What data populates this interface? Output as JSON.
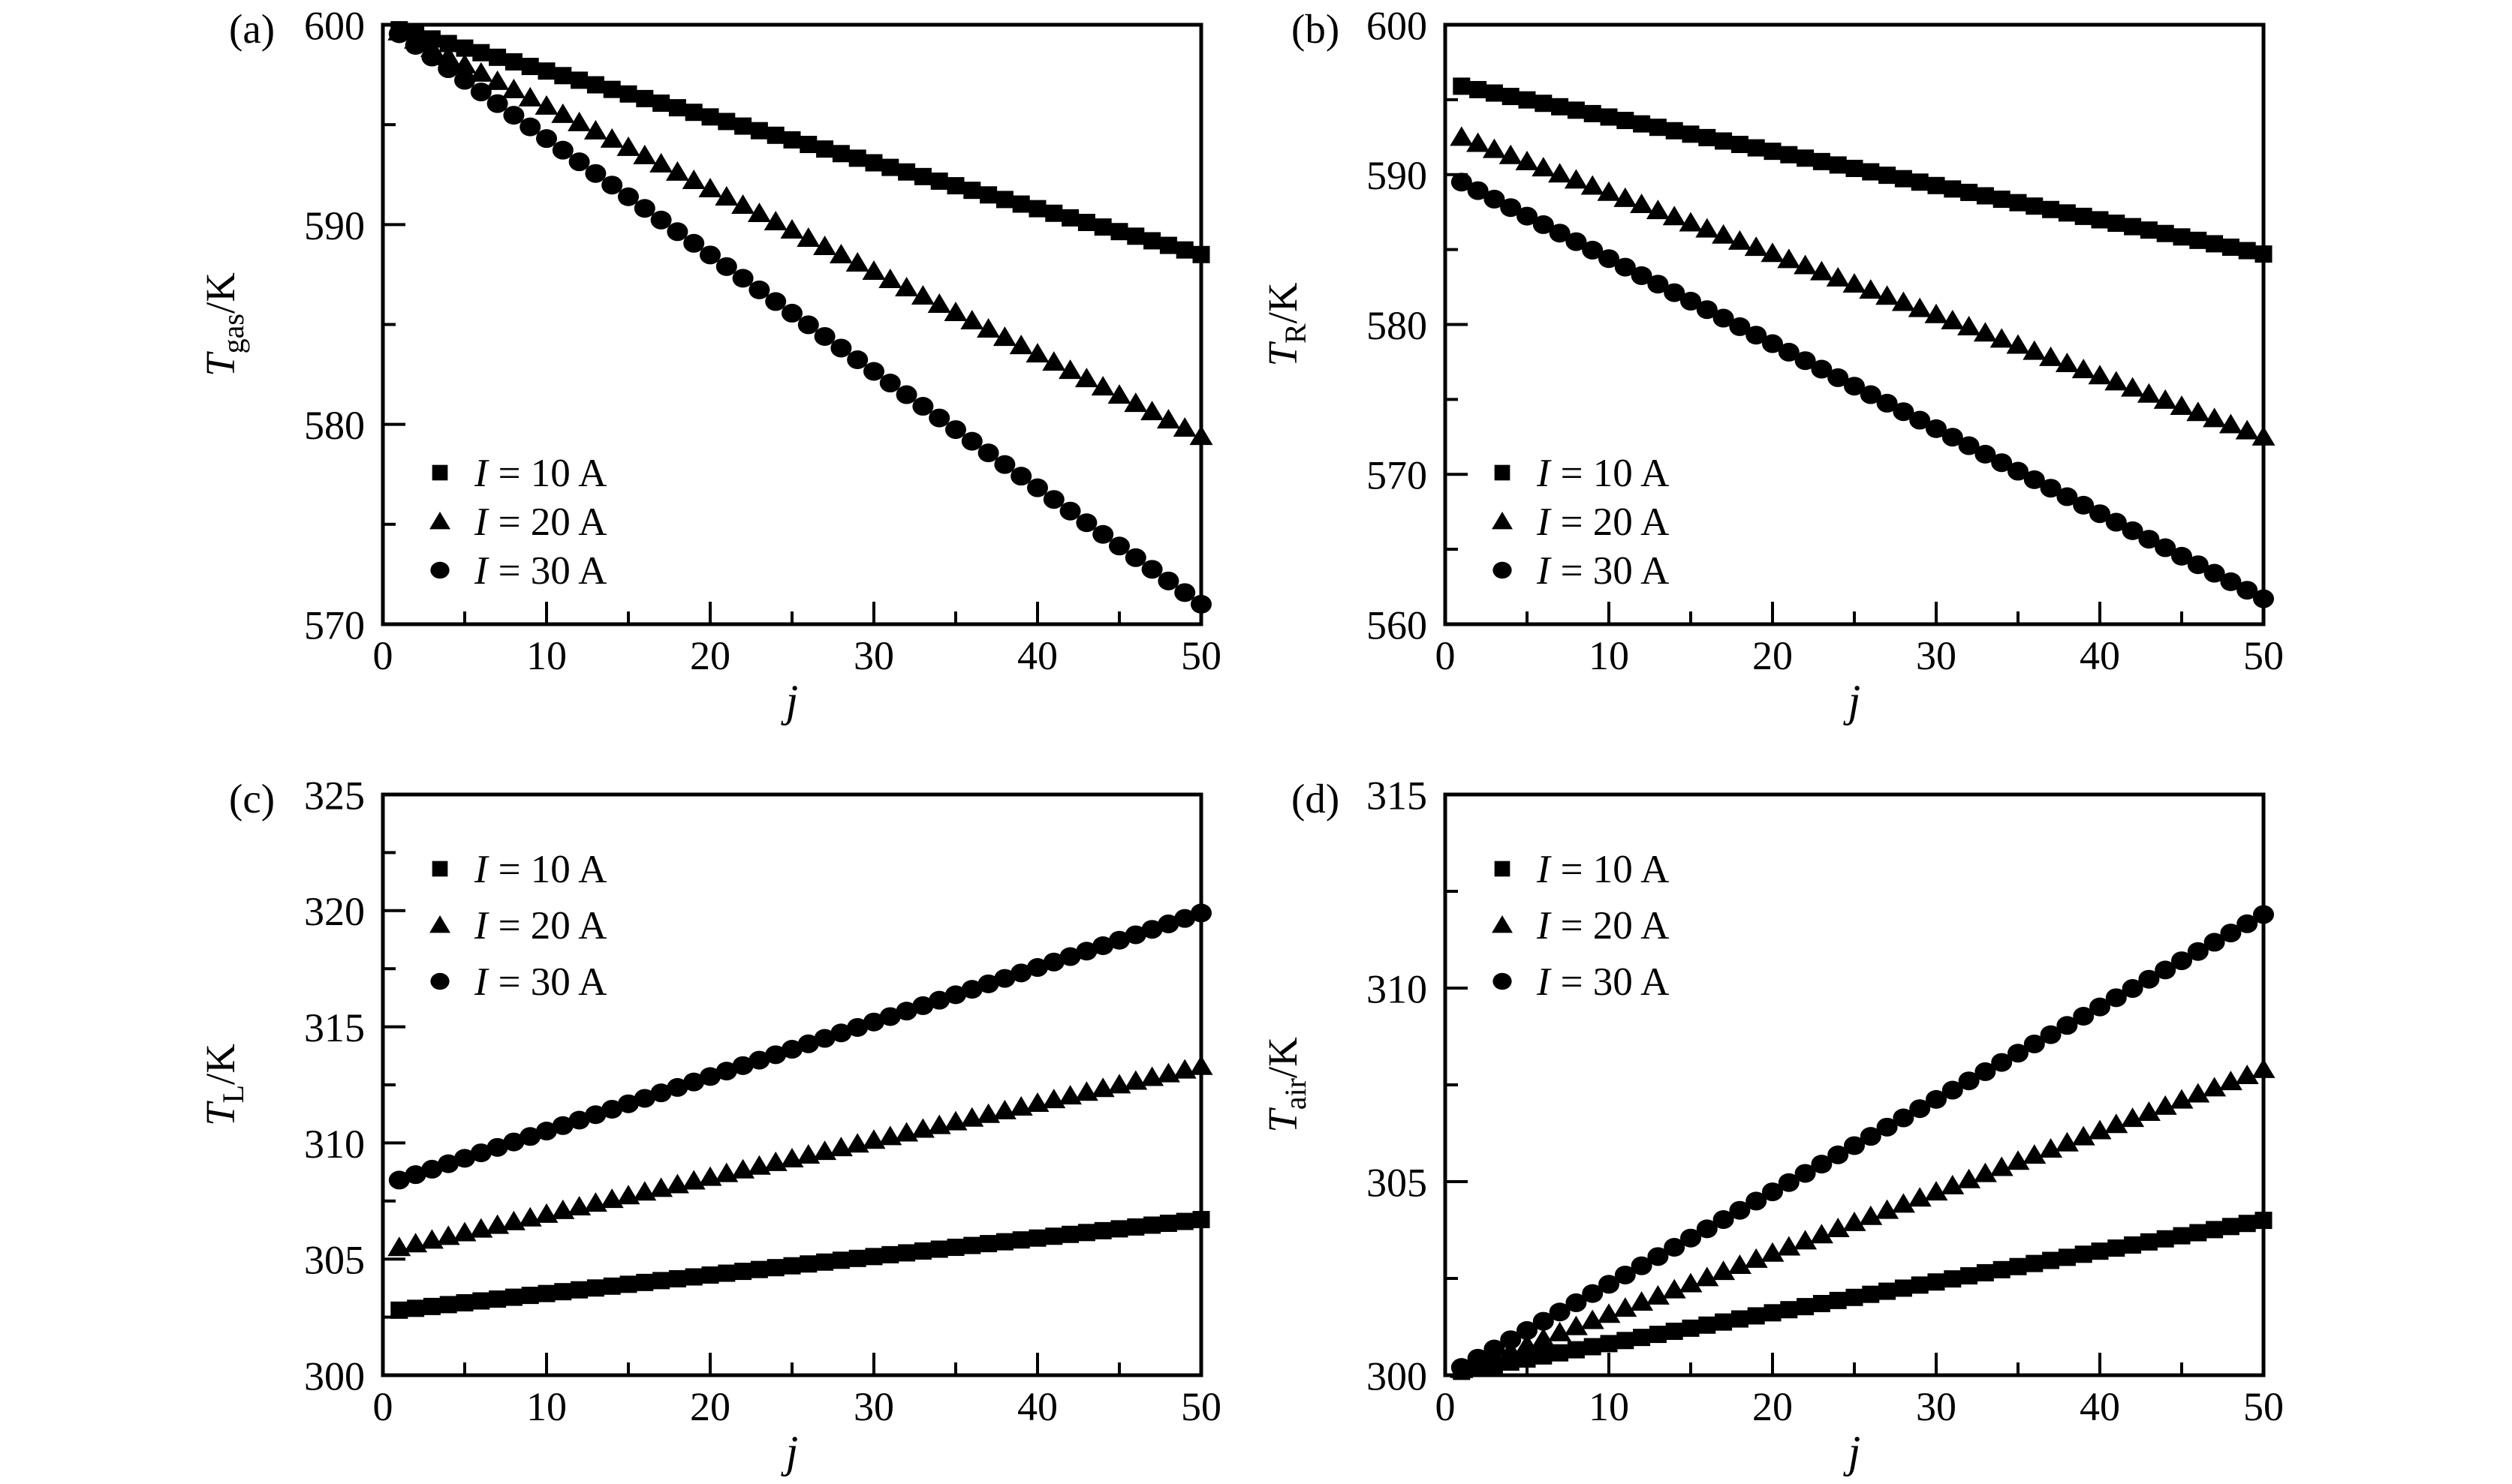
{
  "figure": {
    "background": "#ffffff",
    "ink": "#000000"
  },
  "chart_data": [
    {
      "id": "a",
      "type": "scatter",
      "panel_label": "(a)",
      "xlabel": "j",
      "ylabel": {
        "symbol": "T",
        "subscript": "gas",
        "unit": "/K"
      },
      "xlim": [
        0,
        50
      ],
      "ylim": [
        570,
        600
      ],
      "xticks": [
        0,
        10,
        20,
        30,
        40,
        50
      ],
      "xticks_minor": [
        5,
        15,
        25,
        35,
        45
      ],
      "yticks": [
        570,
        580,
        590,
        600
      ],
      "yticks_minor": [
        575,
        585,
        595
      ],
      "grid": false,
      "legend_position": "lower-left",
      "series": [
        {
          "label": "I = 10 A",
          "marker": "square",
          "x_first": 1,
          "x_last": 50,
          "n_points": 50,
          "y_first": 599.75,
          "y_last": 588.5,
          "trend": "linear"
        },
        {
          "label": "I = 20 A",
          "marker": "triangle",
          "x_first": 1,
          "x_last": 50,
          "n_points": 50,
          "y_first": 599.65,
          "y_last": 579.4,
          "trend": "linear"
        },
        {
          "label": "I = 30 A",
          "marker": "circle",
          "x_first": 1,
          "x_last": 50,
          "n_points": 50,
          "y_first": 599.55,
          "y_last": 571.0,
          "trend": "linear"
        }
      ]
    },
    {
      "id": "b",
      "type": "scatter",
      "panel_label": "(b)",
      "xlabel": "j",
      "ylabel": {
        "symbol": "T",
        "subscript": "R",
        "unit": "/K"
      },
      "xlim": [
        0,
        50
      ],
      "ylim": [
        560,
        600
      ],
      "xticks": [
        0,
        10,
        20,
        30,
        40,
        50
      ],
      "xticks_minor": [
        5,
        15,
        25,
        35,
        45
      ],
      "yticks": [
        560,
        570,
        580,
        590,
        600
      ],
      "yticks_minor": [
        565,
        575,
        585,
        595
      ],
      "grid": false,
      "legend_position": "lower-left",
      "series": [
        {
          "label": "I = 10 A",
          "marker": "square",
          "x_first": 1,
          "x_last": 50,
          "n_points": 50,
          "y_first": 595.9,
          "y_last": 584.7,
          "trend": "linear"
        },
        {
          "label": "I = 20 A",
          "marker": "triangle",
          "x_first": 1,
          "x_last": 50,
          "n_points": 50,
          "y_first": 592.5,
          "y_last": 572.5,
          "trend": "linear"
        },
        {
          "label": "I = 30 A",
          "marker": "circle",
          "x_first": 1,
          "x_last": 50,
          "n_points": 50,
          "y_first": 589.5,
          "y_last": 561.7,
          "trend": "linear"
        }
      ]
    },
    {
      "id": "c",
      "type": "scatter",
      "panel_label": "(c)",
      "xlabel": "j",
      "ylabel": {
        "symbol": "T",
        "subscript": "L",
        "unit": "/K"
      },
      "xlim": [
        0,
        50
      ],
      "ylim": [
        300,
        325
      ],
      "xticks": [
        0,
        10,
        20,
        30,
        40,
        50
      ],
      "xticks_minor": [
        5,
        15,
        25,
        35,
        45
      ],
      "yticks": [
        300,
        305,
        310,
        315,
        320,
        325
      ],
      "yticks_minor": [
        302.5,
        307.5,
        312.5,
        317.5,
        322.5
      ],
      "grid": false,
      "legend_position": "upper-left",
      "series": [
        {
          "label": "I = 10 A",
          "marker": "square",
          "x_first": 1,
          "x_last": 50,
          "n_points": 50,
          "y_first": 302.8,
          "y_last": 306.7,
          "trend": "linear"
        },
        {
          "label": "I = 20 A",
          "marker": "triangle",
          "x_first": 1,
          "x_last": 50,
          "n_points": 50,
          "y_first": 305.5,
          "y_last": 313.3,
          "trend": "linear"
        },
        {
          "label": "I = 30 A",
          "marker": "circle",
          "x_first": 1,
          "x_last": 50,
          "n_points": 50,
          "y_first": 308.4,
          "y_last": 319.9,
          "trend": "linear"
        }
      ]
    },
    {
      "id": "d",
      "type": "scatter",
      "panel_label": "(d)",
      "xlabel": "j",
      "ylabel": {
        "symbol": "T",
        "subscript": "air",
        "unit": "/K"
      },
      "xlim": [
        0,
        50
      ],
      "ylim": [
        300,
        315
      ],
      "xticks": [
        0,
        10,
        20,
        30,
        40,
        50
      ],
      "xticks_minor": [
        5,
        15,
        25,
        35,
        45
      ],
      "yticks": [
        300,
        305,
        310,
        315
      ],
      "yticks_minor": [
        302.5,
        307.5,
        312.5
      ],
      "grid": false,
      "legend_position": "upper-left",
      "series": [
        {
          "label": "I = 10 A",
          "marker": "square",
          "x_first": 1,
          "x_last": 50,
          "n_points": 50,
          "y_first": 300.1,
          "y_last": 304.0,
          "trend": "linear"
        },
        {
          "label": "I = 20 A",
          "marker": "triangle",
          "x_first": 1,
          "x_last": 50,
          "n_points": 50,
          "y_first": 300.15,
          "y_last": 307.9,
          "trend": "linear"
        },
        {
          "label": "I = 30 A",
          "marker": "circle",
          "x_first": 1,
          "x_last": 50,
          "n_points": 50,
          "y_first": 300.2,
          "y_last": 311.9,
          "trend": "linear"
        }
      ]
    }
  ]
}
